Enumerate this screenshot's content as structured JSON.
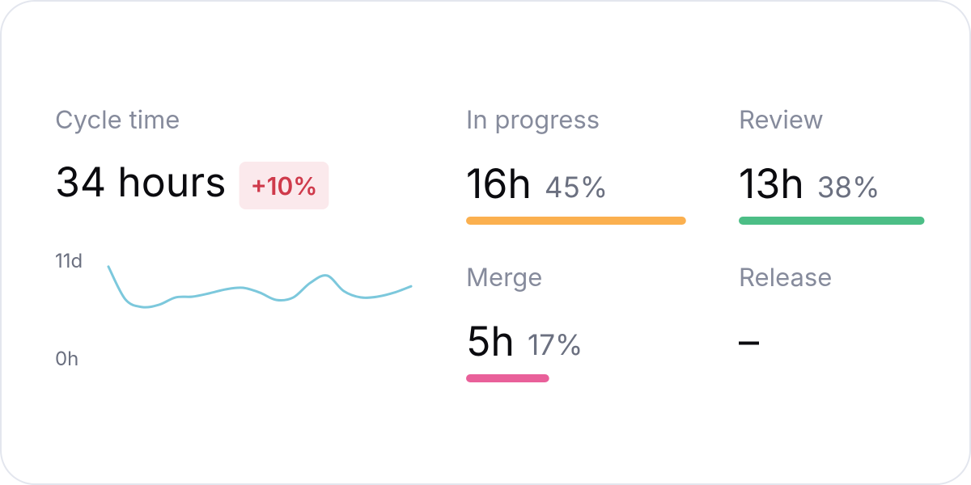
{
  "cycle_time": {
    "label": "Cycle time",
    "value": "34 hours",
    "change": "+10%"
  },
  "chart_data": {
    "type": "line",
    "color": "#7cc8dc",
    "values": [
      249,
      161,
      140,
      146,
      166,
      168,
      177,
      188,
      192,
      179,
      159,
      166,
      205,
      225,
      183,
      166,
      168,
      179,
      196
    ],
    "ylim": [
      0,
      264
    ],
    "yticks": [
      {
        "value": 264,
        "label": "11d"
      },
      {
        "value": 0,
        "label": "0h"
      }
    ]
  },
  "stages": [
    {
      "label": "In progress",
      "value": "16h",
      "share": 45,
      "share_label": "45%",
      "color": "#fbb04f"
    },
    {
      "label": "Review",
      "value": "13h",
      "share": 38,
      "share_label": "38%",
      "color": "#4cbe86"
    },
    {
      "label": "Merge",
      "value": "5h",
      "share": 17,
      "share_label": "17%",
      "color": "#e9609a"
    },
    {
      "label": "Release",
      "value": "–"
    }
  ]
}
